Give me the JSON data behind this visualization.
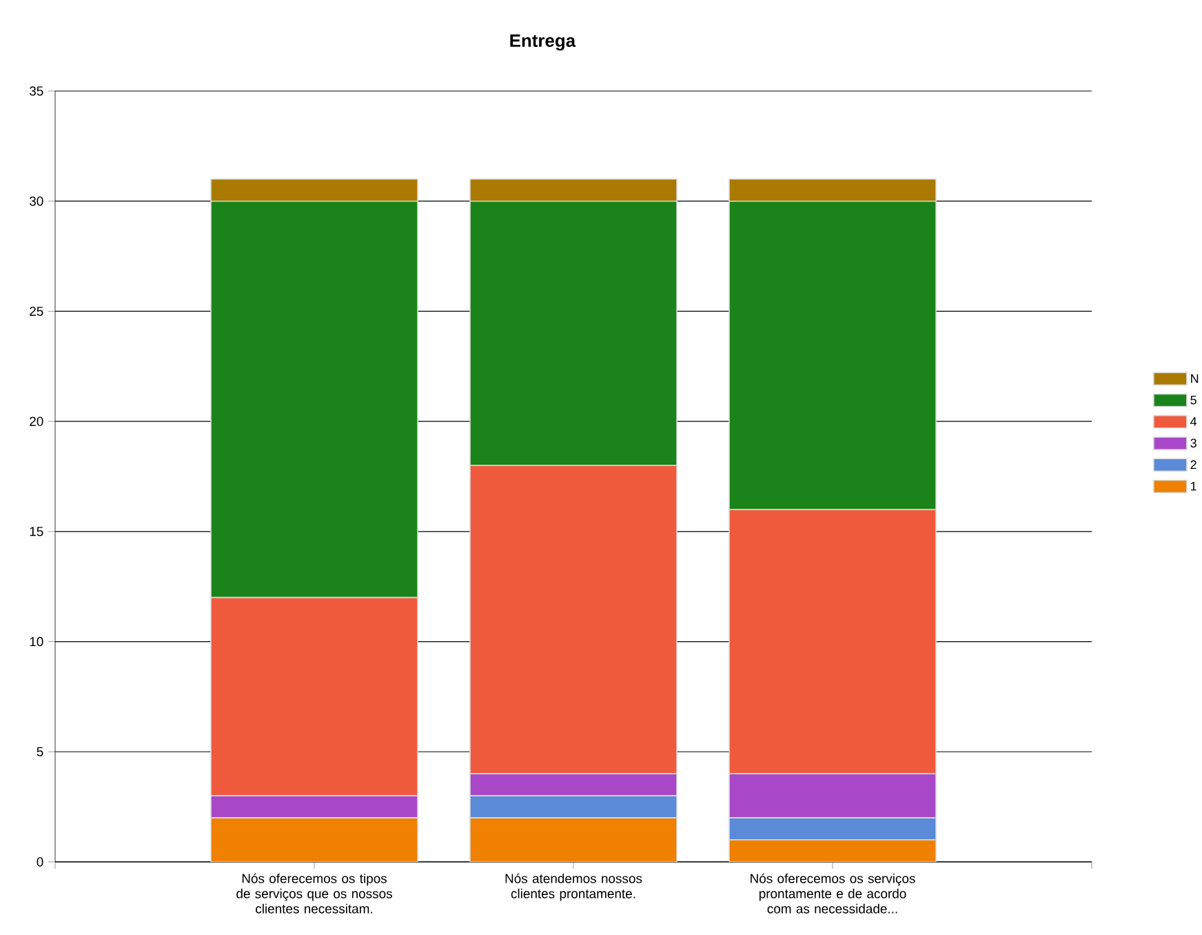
{
  "chart_data": {
    "type": "bar",
    "title": "Entrega",
    "stacked": true,
    "categories": [
      "Nós oferecemos os tipos de serviços que os nossos clientes necessitam.",
      "Nós atendemos nossos clientes prontamente.",
      "Nós oferecemos os serviços prontamente e de acordo com as necessidade..."
    ],
    "series": [
      {
        "name": "1",
        "color": "#f08000",
        "values": [
          2,
          2,
          1
        ]
      },
      {
        "name": "2",
        "color": "#5a8ad8",
        "values": [
          0,
          1,
          1
        ]
      },
      {
        "name": "3",
        "color": "#a848c8",
        "values": [
          1,
          1,
          2
        ]
      },
      {
        "name": "4",
        "color": "#f05a3c",
        "values": [
          9,
          14,
          12
        ]
      },
      {
        "name": "5",
        "color": "#1a841a",
        "values": [
          18,
          12,
          14
        ]
      },
      {
        "name": "N",
        "color": "#aa7a00",
        "values": [
          1,
          1,
          1
        ]
      }
    ],
    "ylim": [
      0,
      35
    ],
    "yticks": [
      0,
      5,
      10,
      15,
      20,
      25,
      30,
      35
    ],
    "grid": "y",
    "legend": "right"
  }
}
